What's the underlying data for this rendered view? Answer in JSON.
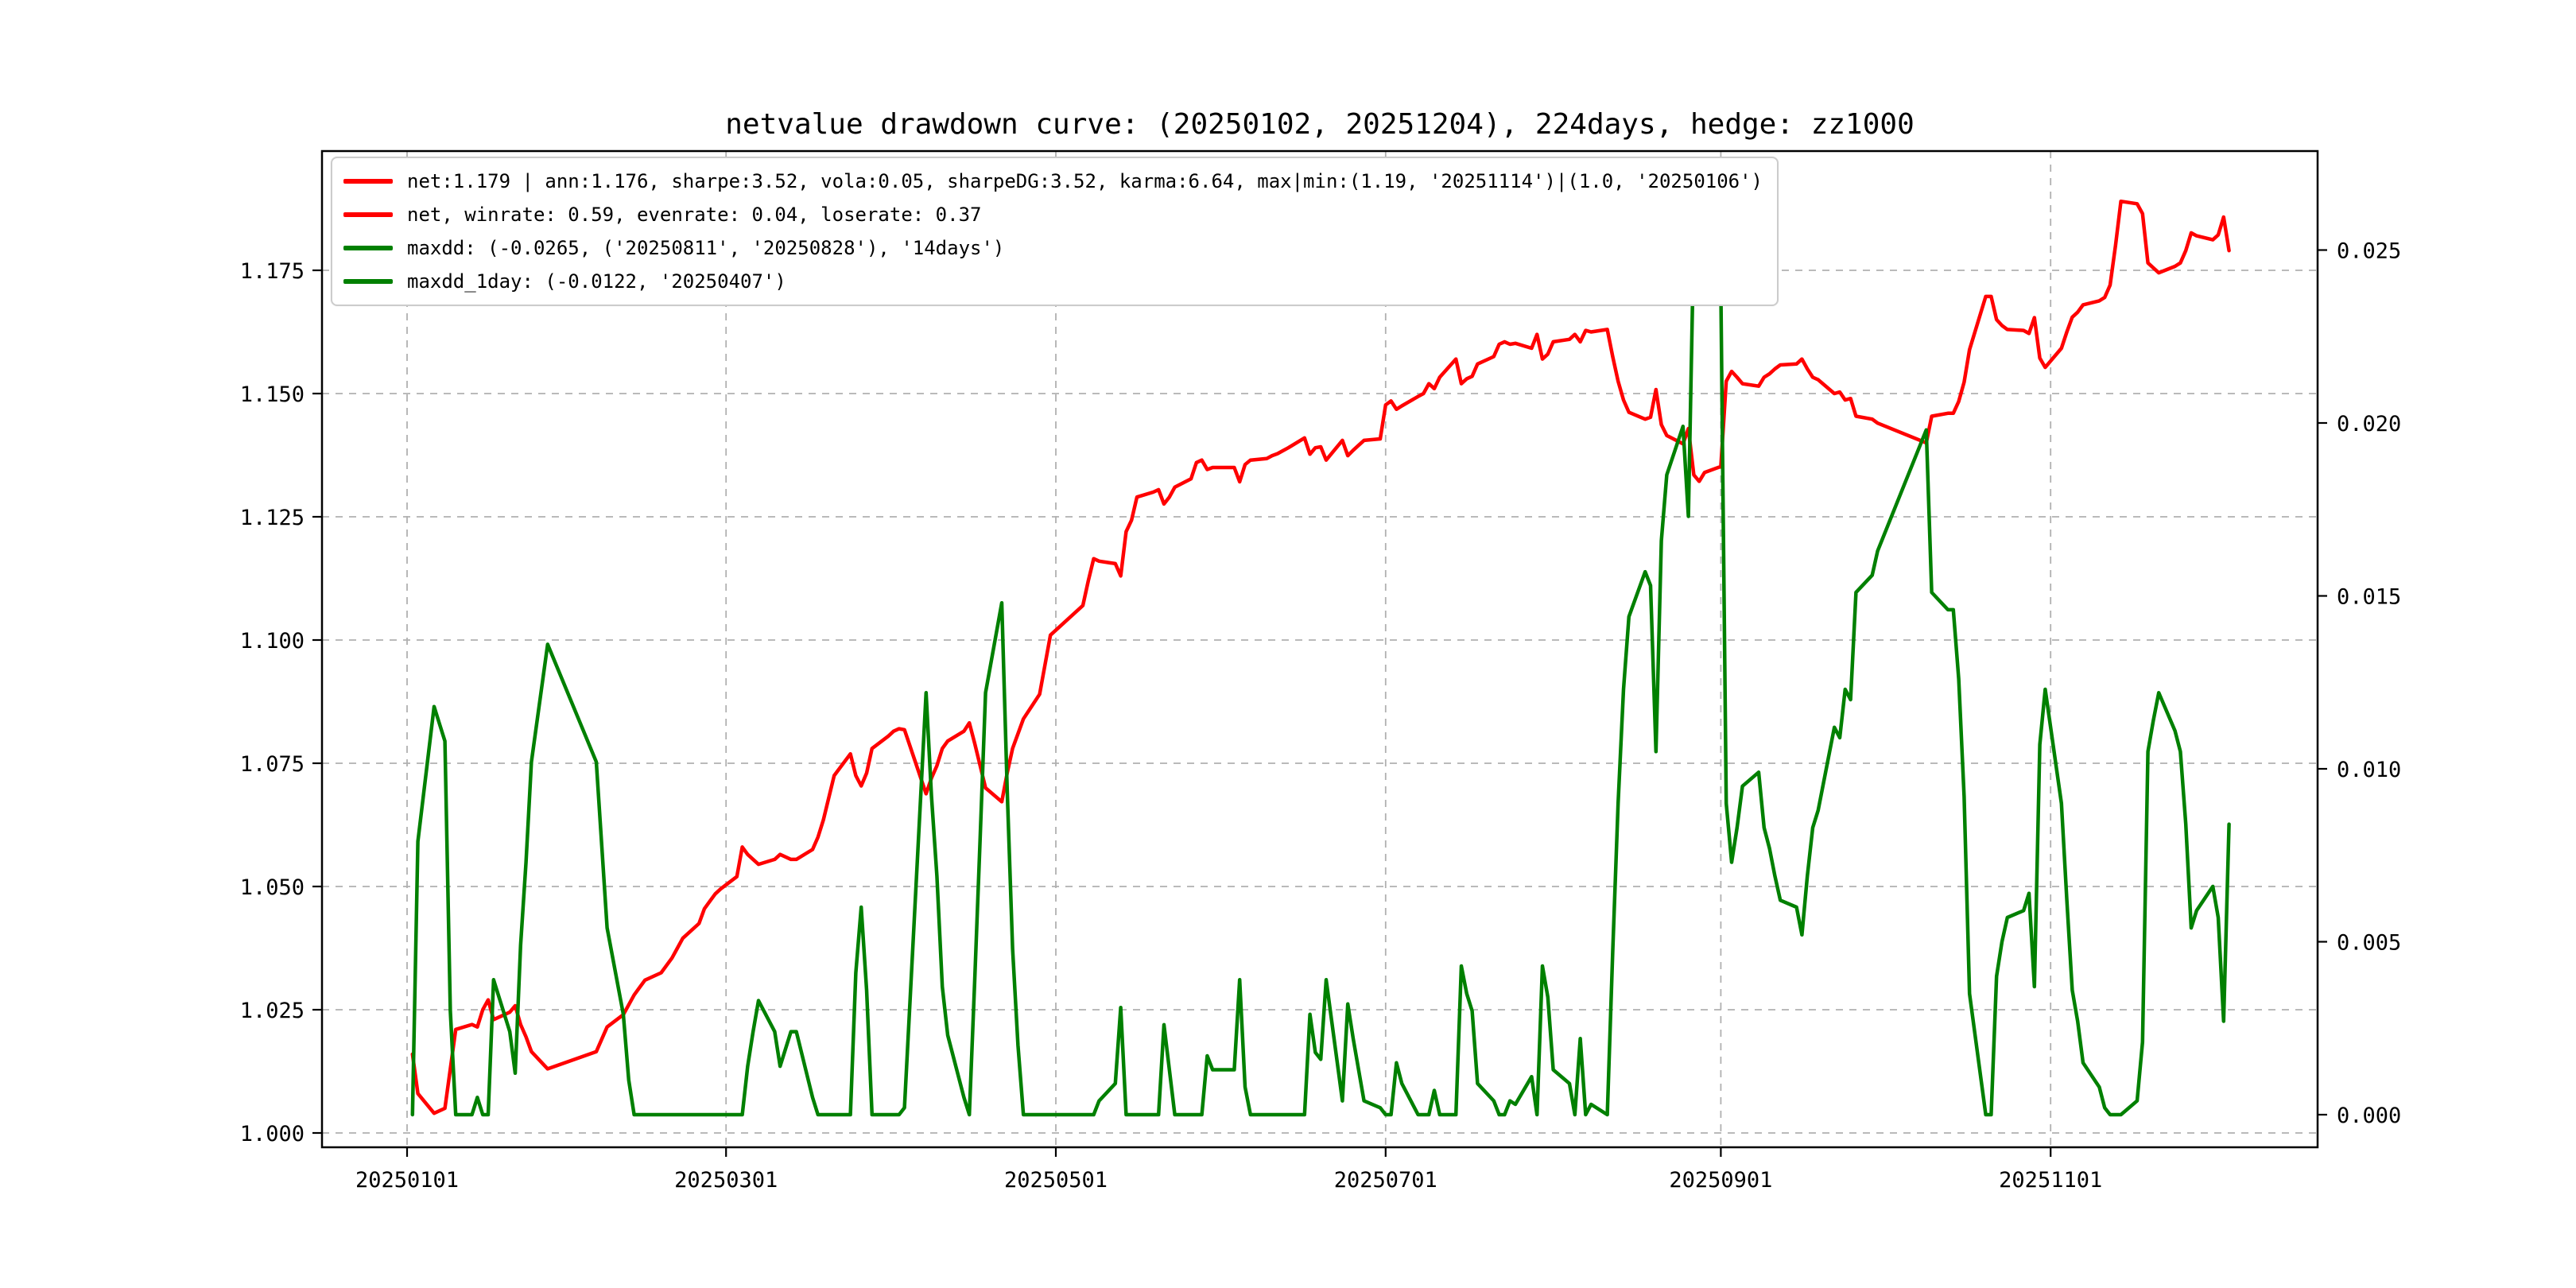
{
  "title": "netvalue drawdown curve: (20250102, 20251204), 224days, hedge: zz1000",
  "colors": {
    "net_line": "#ff0000",
    "drawdown_line": "#008000",
    "grid": "#b0b0b0",
    "frame": "#000000",
    "legend_border": "#cccccc",
    "background": "#ffffff"
  },
  "legend": {
    "entries": [
      {
        "label": "net:1.179 | ann:1.176, sharpe:3.52, vola:0.05, sharpeDG:3.52, karma:6.64, max|min:(1.19, '20251114')|(1.0, '20250106')",
        "color": "#ff0000"
      },
      {
        "label": "net, winrate: 0.59, evenrate: 0.04, loserate: 0.37",
        "color": "#ff0000"
      },
      {
        "label": "maxdd: (-0.0265, ('20250811', '20250828'), '14days')",
        "color": "#008000"
      },
      {
        "label": "maxdd_1day: (-0.0122, '20250407')",
        "color": "#008000"
      }
    ]
  },
  "chart_data": {
    "type": "line",
    "title": "netvalue drawdown curve: (20250102, 20251204), 224days, hedge: zz1000",
    "xlabel": "",
    "ylabel_left": "",
    "ylabel_right": "",
    "grid": true,
    "legend_position": "upper left",
    "x_tick_labels": [
      "20250101",
      "20250301",
      "20250501",
      "20250701",
      "20250901",
      "20251101"
    ],
    "left_axis": {
      "ticks": [
        1.0,
        1.025,
        1.05,
        1.075,
        1.1,
        1.125,
        1.15,
        1.175
      ],
      "range_shown": [
        0.995,
        1.201
      ]
    },
    "right_axis": {
      "ticks": [
        0.0,
        0.005,
        0.01,
        0.015,
        0.02,
        0.025
      ],
      "range_shown": [
        -0.001,
        0.0279
      ]
    },
    "dates": [
      "20250102",
      "20250103",
      "20250106",
      "20250107",
      "20250108",
      "20250109",
      "20250110",
      "20250113",
      "20250114",
      "20250115",
      "20250116",
      "20250117",
      "20250120",
      "20250121",
      "20250122",
      "20250123",
      "20250124",
      "20250127",
      "20250205",
      "20250206",
      "20250207",
      "20250210",
      "20250211",
      "20250212",
      "20250213",
      "20250214",
      "20250217",
      "20250218",
      "20250219",
      "20250220",
      "20250221",
      "20250224",
      "20250225",
      "20250226",
      "20250227",
      "20250228",
      "20250303",
      "20250304",
      "20250305",
      "20250306",
      "20250307",
      "20250310",
      "20250311",
      "20250312",
      "20250313",
      "20250314",
      "20250317",
      "20250318",
      "20250319",
      "20250320",
      "20250321",
      "20250324",
      "20250325",
      "20250326",
      "20250327",
      "20250328",
      "20250331",
      "20250401",
      "20250402",
      "20250403",
      "20250407",
      "20250408",
      "20250409",
      "20250410",
      "20250411",
      "20250414",
      "20250415",
      "20250416",
      "20250417",
      "20250418",
      "20250421",
      "20250422",
      "20250423",
      "20250424",
      "20250425",
      "20250428",
      "20250429",
      "20250430",
      "20250506",
      "20250507",
      "20250508",
      "20250509",
      "20250512",
      "20250513",
      "20250514",
      "20250515",
      "20250516",
      "20250519",
      "20250520",
      "20250521",
      "20250522",
      "20250523",
      "20250526",
      "20250527",
      "20250528",
      "20250529",
      "20250530",
      "20250603",
      "20250604",
      "20250605",
      "20250606",
      "20250609",
      "20250610",
      "20250611",
      "20250612",
      "20250613",
      "20250616",
      "20250617",
      "20250618",
      "20250619",
      "20250620",
      "20250623",
      "20250624",
      "20250625",
      "20250626",
      "20250627",
      "20250630",
      "20250701",
      "20250702",
      "20250703",
      "20250704",
      "20250707",
      "20250708",
      "20250709",
      "20250710",
      "20250711",
      "20250714",
      "20250715",
      "20250716",
      "20250717",
      "20250718",
      "20250721",
      "20250722",
      "20250723",
      "20250724",
      "20250725",
      "20250728",
      "20250729",
      "20250730",
      "20250731",
      "20250801",
      "20250804",
      "20250805",
      "20250806",
      "20250807",
      "20250808",
      "20250811",
      "20250812",
      "20250813",
      "20250814",
      "20250815",
      "20250818",
      "20250819",
      "20250820",
      "20250821",
      "20250822",
      "20250825",
      "20250826",
      "20250827",
      "20250828",
      "20250829",
      "20250901",
      "20250902",
      "20250903",
      "20250904",
      "20250905",
      "20250908",
      "20250909",
      "20250910",
      "20250911",
      "20250912",
      "20250915",
      "20250916",
      "20250917",
      "20250918",
      "20250919",
      "20250922",
      "20250923",
      "20250924",
      "20250925",
      "20250926",
      "20250929",
      "20250930",
      "20251009",
      "20251010",
      "20251013",
      "20251014",
      "20251015",
      "20251016",
      "20251017",
      "20251020",
      "20251021",
      "20251022",
      "20251023",
      "20251024",
      "20251027",
      "20251028",
      "20251029",
      "20251030",
      "20251031",
      "20251103",
      "20251104",
      "20251105",
      "20251106",
      "20251107",
      "20251110",
      "20251111",
      "20251112",
      "20251113",
      "20251114",
      "20251117",
      "20251118",
      "20251119",
      "20251120",
      "20251121",
      "20251124",
      "20251125",
      "20251126",
      "20251127",
      "20251128",
      "20251201",
      "20251202",
      "20251203",
      "20251204"
    ],
    "series": [
      {
        "name": "net",
        "axis": "left",
        "color": "#ff0000",
        "values": [
          1.016,
          1.008,
          1.004,
          1.0045,
          1.005,
          1.013,
          1.021,
          1.022,
          1.0215,
          1.025,
          1.027,
          1.023,
          1.0245,
          1.0258,
          1.022,
          1.0195,
          1.0165,
          1.013,
          1.0165,
          1.019,
          1.0215,
          1.024,
          1.026,
          1.028,
          1.0295,
          1.031,
          1.0325,
          1.034,
          1.0355,
          1.0375,
          1.0395,
          1.0425,
          1.0455,
          1.047,
          1.0485,
          1.0495,
          1.052,
          1.058,
          1.0565,
          1.0555,
          1.0545,
          1.0555,
          1.0565,
          1.056,
          1.0555,
          1.0555,
          1.0575,
          1.06,
          1.0635,
          1.068,
          1.0725,
          1.0769,
          1.0725,
          1.0704,
          1.073,
          1.078,
          1.0805,
          1.0815,
          1.082,
          1.0818,
          1.0688,
          1.072,
          1.0745,
          1.078,
          1.0795,
          1.0815,
          1.0832,
          1.079,
          1.0745,
          1.07,
          1.0672,
          1.073,
          1.078,
          1.081,
          1.084,
          1.089,
          1.095,
          1.101,
          1.107,
          1.112,
          1.1165,
          1.116,
          1.1155,
          1.113,
          1.122,
          1.1243,
          1.129,
          1.13,
          1.1305,
          1.1276,
          1.129,
          1.131,
          1.1327,
          1.136,
          1.1365,
          1.1346,
          1.135,
          1.135,
          1.1321,
          1.1356,
          1.1365,
          1.1368,
          1.1374,
          1.1378,
          1.1384,
          1.139,
          1.141,
          1.1377,
          1.139,
          1.1392,
          1.1365,
          1.1405,
          1.1374,
          1.1385,
          1.1395,
          1.1405,
          1.1408,
          1.1477,
          1.1485,
          1.1468,
          1.1475,
          1.1494,
          1.15,
          1.152,
          1.151,
          1.1533,
          1.157,
          1.152,
          1.153,
          1.1535,
          1.156,
          1.1575,
          1.16,
          1.1605,
          1.16,
          1.1602,
          1.1592,
          1.162,
          1.157,
          1.158,
          1.1605,
          1.161,
          1.162,
          1.1605,
          1.1628,
          1.1625,
          1.163,
          1.1575,
          1.1525,
          1.1487,
          1.1462,
          1.1448,
          1.1452,
          1.1508,
          1.1437,
          1.1415,
          1.1398,
          1.1429,
          1.1335,
          1.1322,
          1.134,
          1.1352,
          1.1525,
          1.1545,
          1.1533,
          1.152,
          1.1515,
          1.1533,
          1.154,
          1.155,
          1.1558,
          1.156,
          1.157,
          1.155,
          1.1533,
          1.1528,
          1.15,
          1.1503,
          1.1487,
          1.149,
          1.1454,
          1.1448,
          1.144,
          1.14,
          1.1454,
          1.146,
          1.146,
          1.1484,
          1.1523,
          1.1589,
          1.1697,
          1.1697,
          1.165,
          1.1638,
          1.163,
          1.1628,
          1.1622,
          1.1654,
          1.1572,
          1.1553,
          1.1592,
          1.1625,
          1.1655,
          1.1665,
          1.168,
          1.1688,
          1.1695,
          1.172,
          1.18,
          1.189,
          1.1885,
          1.1865,
          1.1765,
          1.1755,
          1.1745,
          1.1758,
          1.1765,
          1.179,
          1.1826,
          1.182,
          1.1812,
          1.1822,
          1.1858,
          1.179
        ]
      },
      {
        "name": "maxdd",
        "axis": "right",
        "color": "#008000",
        "values": [
          0,
          0.0079,
          0.0118,
          0.0113,
          0.0108,
          0.003,
          0,
          0,
          0.0005,
          0,
          0,
          0.0039,
          0.0024,
          0.0012,
          0.0049,
          0.0073,
          0.0102,
          0.0136,
          0.0102,
          0.0078,
          0.0054,
          0.0029,
          0.001,
          0,
          0,
          0,
          0,
          0,
          0,
          0,
          0,
          0,
          0,
          0,
          0,
          0,
          0,
          0,
          0.0014,
          0.0024,
          0.0033,
          0.0024,
          0.0014,
          0.0019,
          0.0024,
          0.0024,
          0.0005,
          0,
          0,
          0,
          0,
          0,
          0.0041,
          0.006,
          0.0036,
          0,
          0,
          0,
          0,
          0.0002,
          0.0122,
          0.0092,
          0.0069,
          0.0037,
          0.0023,
          0.0005,
          0,
          0.0039,
          0.008,
          0.0122,
          0.0148,
          0.0094,
          0.0048,
          0.002,
          0,
          0,
          0,
          0,
          0,
          0,
          0,
          0.0004,
          0.0009,
          0.0031,
          0,
          0,
          0,
          0,
          0,
          0.0026,
          0.0013,
          0,
          0,
          0,
          0,
          0.0017,
          0.0013,
          0.0013,
          0.0039,
          0.0008,
          0,
          0,
          0,
          0,
          0,
          0,
          0,
          0.0029,
          0.0018,
          0.0016,
          0.0039,
          0.0004,
          0.0032,
          0.0022,
          0.0013,
          0.0004,
          0.0002,
          0,
          0,
          0.0015,
          0.0009,
          0,
          0,
          0,
          0.0007,
          0,
          0,
          0.0043,
          0.0035,
          0.003,
          0.0009,
          0.0004,
          0,
          0,
          0.0004,
          0.0003,
          0.0011,
          0,
          0.0043,
          0.0034,
          0.0013,
          0.0009,
          0,
          0.0022,
          0,
          0.0003,
          0,
          0.0047,
          0.009,
          0.0123,
          0.0144,
          0.0157,
          0.0153,
          0.0105,
          0.0166,
          0.0185,
          0.0199,
          0.0173,
          0.0254,
          0.0265,
          0.0249,
          0.0239,
          0.009,
          0.0073,
          0.0083,
          0.0095,
          0.0099,
          0.0083,
          0.0077,
          0.0069,
          0.0062,
          0.006,
          0.0052,
          0.0069,
          0.0083,
          0.0088,
          0.0112,
          0.0109,
          0.0123,
          0.012,
          0.0151,
          0.0156,
          0.0163,
          0.0198,
          0.0151,
          0.0146,
          0.0146,
          0.0126,
          0.0092,
          0.0035,
          0,
          0,
          0.004,
          0.005,
          0.0057,
          0.0059,
          0.0064,
          0.0037,
          0.0107,
          0.0123,
          0.009,
          0.0062,
          0.0036,
          0.0027,
          0.0015,
          0.0008,
          0.0002,
          0,
          0,
          0,
          0.0004,
          0.0021,
          0.0105,
          0.0114,
          0.0122,
          0.0111,
          0.0105,
          0.0084,
          0.0054,
          0.0059,
          0.0066,
          0.0057,
          0.0027,
          0.0084
        ]
      }
    ]
  }
}
